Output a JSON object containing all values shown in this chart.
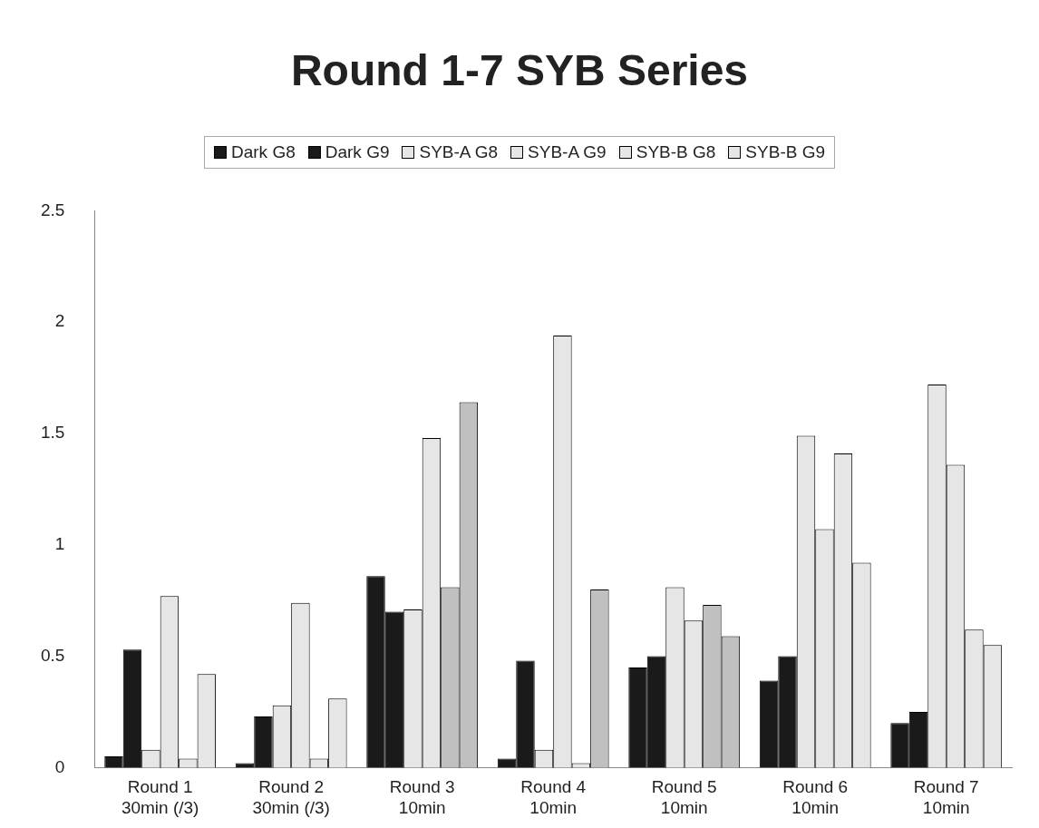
{
  "chart_data": {
    "type": "bar",
    "title": "Round 1-7 SYB Series",
    "categories": [
      "Round 1\n30min (/3)",
      "Round 2\n30min (/3)",
      "Round 3\n10min",
      "Round 4\n10min",
      "Round 5\n10min",
      "Round 6\n10min",
      "Round 7\n10min"
    ],
    "series": [
      {
        "name": "Dark G8",
        "color": "#1a1a1a",
        "values": [
          0.05,
          0.02,
          0.86,
          0.04,
          0.45,
          0.39,
          0.2
        ]
      },
      {
        "name": "Dark G9",
        "color": "#1a1a1a",
        "values": [
          0.53,
          0.23,
          0.7,
          0.48,
          0.5,
          0.5,
          0.25
        ]
      },
      {
        "name": "SYB-A G8",
        "color": "#e6e6e6",
        "values": [
          0.08,
          0.28,
          0.71,
          0.08,
          0.81,
          1.49,
          1.72
        ]
      },
      {
        "name": "SYB-A G9",
        "color": "#e6e6e6",
        "values": [
          0.77,
          0.74,
          1.48,
          1.94,
          0.66,
          1.07,
          1.36
        ]
      },
      {
        "name": "SYB-B G8",
        "color": "#e6e6e6",
        "colors": [
          "#e6e6e6",
          "#e6e6e6",
          "#c0c0c0",
          "#e6e6e6",
          "#c0c0c0",
          "#e6e6e6",
          "#e6e6e6"
        ],
        "values": [
          0.04,
          0.04,
          0.81,
          0.02,
          0.73,
          1.41,
          0.62
        ]
      },
      {
        "name": "SYB-B G9",
        "color": "#e6e6e6",
        "colors": [
          "#e6e6e6",
          "#e6e6e6",
          "#c0c0c0",
          "#c0c0c0",
          "#c0c0c0",
          "#e6e6e6",
          "#e6e6e6"
        ],
        "values": [
          0.42,
          0.31,
          1.64,
          0.8,
          0.59,
          0.92,
          0.55
        ]
      }
    ],
    "ylim": [
      0,
      2.5
    ],
    "yticks": [
      0,
      0.5,
      1,
      1.5,
      2,
      2.5
    ],
    "grid": false,
    "legend": "top"
  }
}
